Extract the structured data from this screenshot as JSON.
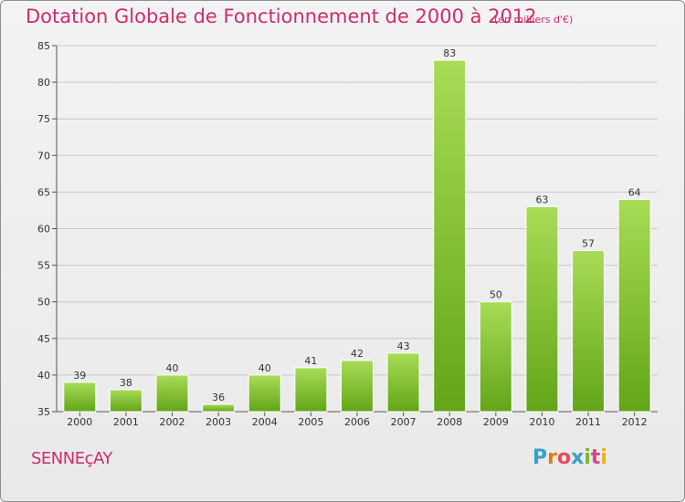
{
  "header": {
    "title": "Dotation Globale de Fonctionnement de 2000 à 2012",
    "units": "(en milliers d'€)"
  },
  "footer": {
    "city": "SENNEçAY",
    "brand": "Proxiti"
  },
  "colors": {
    "accent": "#cc2d6a",
    "bar_light": "#a8dc56",
    "bar_dark": "#62a518",
    "grid": "#c8c8c8",
    "background": "#eeeeee",
    "brand_letters": [
      "#3aa0c8",
      "#e87a1a",
      "#e84a5a",
      "#3aa0c8",
      "#7ab830",
      "#d04a8a",
      "#e8b020"
    ]
  },
  "chart_data": {
    "type": "bar",
    "title": "Dotation Globale de Fonctionnement de 2000 à 2012",
    "subtitle": "(en milliers d'€)",
    "xlabel": "",
    "ylabel": "",
    "categories": [
      "2000",
      "2001",
      "2002",
      "2003",
      "2004",
      "2005",
      "2006",
      "2007",
      "2008",
      "2009",
      "2010",
      "2011",
      "2012"
    ],
    "values": [
      39,
      38,
      40,
      36,
      40,
      41,
      42,
      43,
      83,
      50,
      63,
      57,
      64
    ],
    "ylim": [
      35,
      85
    ],
    "yticks": [
      35,
      40,
      45,
      50,
      55,
      60,
      65,
      70,
      75,
      80,
      85
    ],
    "grid": true,
    "legend": "none"
  }
}
